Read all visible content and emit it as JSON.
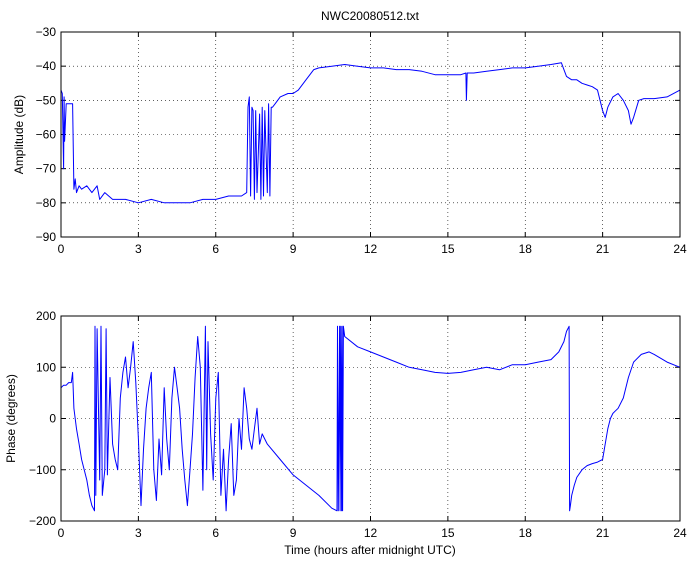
{
  "chart_data": [
    {
      "type": "line",
      "title": "NWC20080512.txt",
      "xlabel": "",
      "ylabel": "Amplitude (dB)",
      "xlim": [
        0,
        24
      ],
      "ylim": [
        -90,
        -30
      ],
      "xticks": [
        0,
        3,
        6,
        9,
        12,
        15,
        18,
        21,
        24
      ],
      "yticks": [
        -90,
        -80,
        -70,
        -60,
        -50,
        -40,
        -30
      ],
      "grid": true,
      "series": [
        {
          "color": "#0000ff",
          "x": [
            0.0,
            0.05,
            0.1,
            0.12,
            0.14,
            0.2,
            0.3,
            0.35,
            0.45,
            0.5,
            0.55,
            0.6,
            0.7,
            0.8,
            1.0,
            1.2,
            1.4,
            1.5,
            1.7,
            2.0,
            2.5,
            3.0,
            3.5,
            4.0,
            4.5,
            5.0,
            5.5,
            6.0,
            6.5,
            7.0,
            7.2,
            7.25,
            7.3,
            7.35,
            7.4,
            7.45,
            7.5,
            7.55,
            7.6,
            7.7,
            7.75,
            7.8,
            7.85,
            7.9,
            8.0,
            8.05,
            8.1,
            8.15,
            8.2,
            8.3,
            8.5,
            8.8,
            9.0,
            9.2,
            9.5,
            9.8,
            10.0,
            10.5,
            11.0,
            11.5,
            12.0,
            12.5,
            13.0,
            13.5,
            14.0,
            14.5,
            15.0,
            15.5,
            15.7,
            15.72,
            15.75,
            16.0,
            16.5,
            17.0,
            17.5,
            18.0,
            18.5,
            19.0,
            19.4,
            19.5,
            19.6,
            19.8,
            20.0,
            20.2,
            20.4,
            20.6,
            20.8,
            21.0,
            21.1,
            21.2,
            21.4,
            21.6,
            21.8,
            22.0,
            22.1,
            22.2,
            22.4,
            22.6,
            23.0,
            23.5,
            24.0
          ],
          "values": [
            -47,
            -48,
            -70,
            -49,
            -62,
            -51,
            -51,
            -51,
            -51,
            -76,
            -73,
            -77,
            -75,
            -76,
            -75,
            -77,
            -75,
            -79,
            -77,
            -79,
            -79,
            -80,
            -79,
            -80,
            -80,
            -80,
            -79,
            -79,
            -78,
            -78,
            -77,
            -52,
            -49,
            -78,
            -52,
            -53,
            -79,
            -53,
            -77,
            -54,
            -79,
            -52,
            -78,
            -53,
            -77,
            -51,
            -78,
            -52,
            -52,
            -51,
            -49,
            -48,
            -48,
            -47,
            -44,
            -41,
            -40.5,
            -40,
            -39.5,
            -40,
            -40.5,
            -40.5,
            -41,
            -41,
            -41.5,
            -42.5,
            -42.5,
            -42.5,
            -42,
            -50,
            -42,
            -42,
            -41.5,
            -41,
            -40.5,
            -40.5,
            -40,
            -39.5,
            -39,
            -41,
            -43,
            -44,
            -44,
            -45,
            -45.5,
            -46,
            -47,
            -53,
            -55,
            -52,
            -49,
            -48,
            -50,
            -53,
            -57,
            -55,
            -50,
            -49.5,
            -49.5,
            -49,
            -47
          ]
        }
      ]
    },
    {
      "type": "line",
      "title": "",
      "xlabel": "Time (hours after midnight UTC)",
      "ylabel": "Phase (degrees)",
      "xlim": [
        0,
        24
      ],
      "ylim": [
        -200,
        200
      ],
      "xticks": [
        0,
        3,
        6,
        9,
        12,
        15,
        18,
        21,
        24
      ],
      "yticks": [
        -200,
        -100,
        0,
        100,
        200
      ],
      "grid": true,
      "series": [
        {
          "color": "#0000ff",
          "x": [
            0.0,
            0.1,
            0.2,
            0.3,
            0.4,
            0.45,
            0.5,
            0.6,
            0.7,
            0.8,
            0.9,
            1.0,
            1.1,
            1.2,
            1.3,
            1.32,
            1.35,
            1.4,
            1.5,
            1.55,
            1.6,
            1.7,
            1.75,
            1.8,
            1.9,
            2.0,
            2.1,
            2.2,
            2.3,
            2.4,
            2.5,
            2.6,
            2.7,
            2.8,
            2.9,
            3.0,
            3.1,
            3.2,
            3.3,
            3.4,
            3.5,
            3.6,
            3.7,
            3.8,
            3.9,
            4.0,
            4.1,
            4.2,
            4.3,
            4.4,
            4.5,
            4.6,
            4.7,
            4.8,
            4.9,
            5.0,
            5.1,
            5.2,
            5.3,
            5.4,
            5.5,
            5.6,
            5.65,
            5.7,
            5.8,
            5.9,
            6.0,
            6.1,
            6.2,
            6.3,
            6.4,
            6.5,
            6.6,
            6.7,
            6.8,
            6.9,
            7.0,
            7.1,
            7.2,
            7.3,
            7.4,
            7.5,
            7.6,
            7.7,
            7.8,
            8.0,
            8.5,
            9.0,
            9.5,
            10.0,
            10.5,
            10.7,
            10.72,
            10.75,
            10.8,
            10.82,
            10.85,
            10.88,
            10.9,
            10.92,
            10.95,
            11.0,
            11.5,
            12.0,
            12.5,
            13.0,
            13.5,
            14.0,
            14.5,
            15.0,
            15.5,
            16.0,
            16.5,
            17.0,
            17.5,
            18.0,
            18.5,
            19.0,
            19.3,
            19.5,
            19.6,
            19.7,
            19.72,
            19.75,
            19.8,
            19.9,
            20.0,
            20.2,
            20.4,
            20.6,
            20.8,
            21.0,
            21.1,
            21.2,
            21.3,
            21.4,
            21.5,
            21.6,
            21.8,
            22.0,
            22.2,
            22.5,
            22.8,
            23.0,
            23.5,
            24.0
          ],
          "values": [
            60,
            65,
            65,
            70,
            70,
            90,
            20,
            -20,
            -50,
            -80,
            -100,
            -120,
            -150,
            -170,
            -180,
            180,
            -150,
            175,
            -120,
            180,
            -150,
            -100,
            175,
            -110,
            80,
            -50,
            -80,
            -100,
            40,
            90,
            120,
            60,
            100,
            150,
            70,
            -40,
            -170,
            -60,
            20,
            60,
            90,
            -100,
            -160,
            -40,
            -110,
            60,
            -40,
            -100,
            40,
            100,
            60,
            20,
            -60,
            -120,
            -170,
            -100,
            -30,
            80,
            160,
            100,
            -140,
            180,
            -100,
            150,
            -30,
            -120,
            40,
            90,
            -150,
            -60,
            -180,
            -80,
            -10,
            -150,
            -120,
            0,
            -60,
            60,
            20,
            -40,
            -60,
            -20,
            20,
            -50,
            -30,
            -50,
            -80,
            -110,
            -130,
            -150,
            -175,
            -180,
            180,
            -180,
            180,
            -180,
            180,
            -180,
            180,
            -180,
            180,
            160,
            140,
            130,
            120,
            110,
            100,
            95,
            90,
            88,
            90,
            95,
            100,
            95,
            105,
            105,
            110,
            115,
            130,
            150,
            170,
            180,
            -180,
            -170,
            -150,
            -130,
            -115,
            -100,
            -92,
            -88,
            -85,
            -80,
            -50,
            -20,
            0,
            10,
            15,
            20,
            40,
            80,
            110,
            125,
            130,
            125,
            110,
            100
          ]
        }
      ]
    }
  ]
}
